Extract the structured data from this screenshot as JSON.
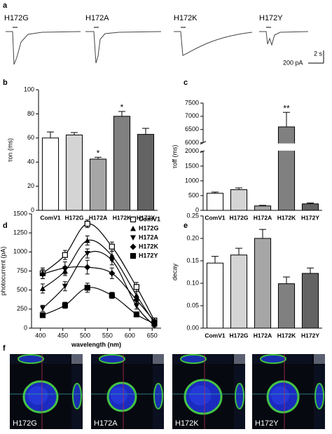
{
  "traces": {
    "label": "a",
    "names": [
      "H172G",
      "H172A",
      "H172K",
      "H172Y"
    ],
    "time_scale": "2 s",
    "current_scale": "200 pA"
  },
  "chart_data": [
    {
      "type": "bar",
      "label": "b",
      "ylabel": "τon (ms)",
      "categories": [
        "ComV1",
        "H172G",
        "H172A",
        "H172K",
        "H172Y"
      ],
      "values": [
        60,
        62.5,
        42.5,
        78,
        63
      ],
      "errors": [
        5,
        2,
        1.5,
        4,
        5
      ],
      "colors": [
        "#ffffff",
        "#d4d4d4",
        "#a6a6a6",
        "#808080",
        "#636363"
      ],
      "ylim": [
        0,
        100
      ],
      "yticks": [
        0,
        20,
        40,
        60,
        80,
        100
      ],
      "annotations": [
        {
          "category": "H172A",
          "text": "*"
        },
        {
          "category": "H172K",
          "text": "*"
        }
      ]
    },
    {
      "type": "bar",
      "label": "c",
      "ylabel": "τoff (ms)",
      "categories": [
        "ComV1",
        "H172G",
        "H172A",
        "H172K",
        "H172Y"
      ],
      "values": [
        580,
        700,
        150,
        6600,
        220
      ],
      "errors": [
        40,
        60,
        20,
        550,
        30
      ],
      "colors": [
        "#ffffff",
        "#d4d4d4",
        "#a6a6a6",
        "#808080",
        "#636363"
      ],
      "ylim": [
        0,
        7500
      ],
      "axis_break": [
        2000,
        6000
      ],
      "yticks": [
        0,
        500,
        1000,
        1500,
        2000,
        6000,
        6500,
        7000,
        7500
      ],
      "annotations": [
        {
          "category": "H172K",
          "text": "**"
        }
      ]
    },
    {
      "type": "line",
      "label": "d",
      "xlabel": "wavelength (nm)",
      "ylabel": "photocurrent (pA)",
      "x": [
        405,
        455,
        505,
        560,
        615,
        655
      ],
      "xlim": [
        380,
        670
      ],
      "xticks": [
        400,
        450,
        500,
        550,
        600,
        650
      ],
      "ylim": [
        0,
        1500
      ],
      "yticks": [
        0,
        250,
        500,
        750,
        1000,
        1250,
        1500
      ],
      "legend": "upper right",
      "series": [
        {
          "name": "ComV1",
          "marker": "open-square",
          "color": "#000000",
          "values": [
            720,
            960,
            1370,
            1070,
            540,
            100
          ],
          "errors": [
            70,
            60,
            50,
            60,
            60,
            20
          ]
        },
        {
          "name": "H172G",
          "marker": "triangle-up",
          "color": "#000000",
          "values": [
            520,
            750,
            1150,
            950,
            430,
            70
          ],
          "errors": [
            60,
            60,
            60,
            60,
            50,
            20
          ]
        },
        {
          "name": "H172A",
          "marker": "triangle-down",
          "color": "#000000",
          "values": [
            260,
            550,
            980,
            890,
            290,
            30
          ],
          "errors": [
            40,
            60,
            60,
            60,
            40,
            15
          ]
        },
        {
          "name": "H172K",
          "marker": "diamond",
          "color": "#000000",
          "values": [
            710,
            790,
            800,
            720,
            370,
            90
          ],
          "errors": [
            60,
            80,
            90,
            70,
            50,
            20
          ]
        },
        {
          "name": "H172Y",
          "marker": "square",
          "color": "#000000",
          "values": [
            170,
            300,
            530,
            430,
            180,
            60
          ],
          "errors": [
            30,
            40,
            60,
            40,
            30,
            15
          ]
        }
      ]
    },
    {
      "type": "bar",
      "label": "e",
      "ylabel": "decay",
      "categories": [
        "ComV1",
        "H172G",
        "H172A",
        "H172K",
        "H172Y"
      ],
      "values": [
        0.145,
        0.163,
        0.2,
        0.099,
        0.122
      ],
      "errors": [
        0.015,
        0.015,
        0.02,
        0.015,
        0.012
      ],
      "colors": [
        "#ffffff",
        "#d4d4d4",
        "#a6a6a6",
        "#808080",
        "#636363"
      ],
      "ylim": [
        0,
        0.25
      ],
      "yticks": [
        {
          "value": 0,
          "label": "0.00"
        },
        {
          "value": 0.05,
          "label": "0.05"
        },
        {
          "value": 0.1,
          "label": "0.10"
        },
        {
          "value": 0.15,
          "label": "0.15"
        },
        {
          "value": 0.2,
          "label": "0.20"
        },
        {
          "value": 0.25,
          "label": "0.25"
        }
      ]
    }
  ],
  "images": {
    "label": "f",
    "names": [
      "H172G",
      "H172A",
      "H172K",
      "H172Y"
    ]
  }
}
